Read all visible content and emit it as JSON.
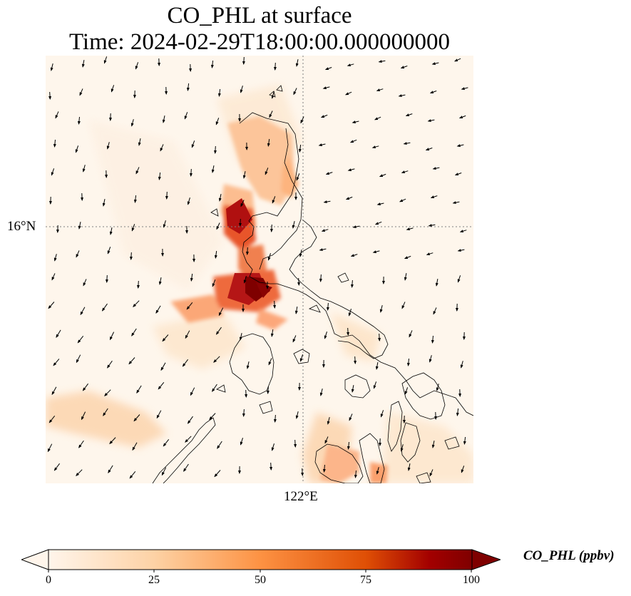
{
  "title_line1": "CO_PHL at surface",
  "title_line2": "Time: 2024-02-29T18:00:00.000000000",
  "lat_label": "16°N",
  "lon_label": "122°E",
  "colorbar": {
    "label": "CO_PHL (ppbv)",
    "ticks": [
      "0",
      "25",
      "50",
      "75",
      "100"
    ],
    "min": 0,
    "max": 100,
    "colors": [
      "#fff5eb",
      "#fdd2a5",
      "#fd9243",
      "#df4f05",
      "#a30000",
      "#7f0000"
    ]
  },
  "map": {
    "ocean_color": "#fef6ec",
    "coastline_color": "#000000",
    "gridline_color": "#808080",
    "wind_arrow_color": "#000000"
  }
}
